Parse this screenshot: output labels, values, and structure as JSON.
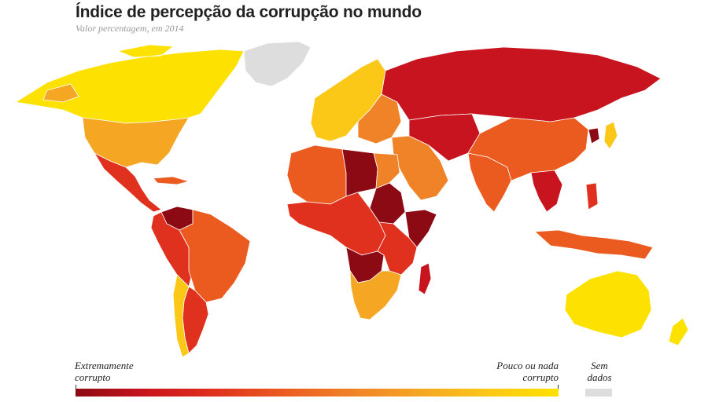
{
  "header": {
    "title": "Índice de percepção da corrupção no mundo",
    "subtitle": "Valor percentagem, em 2014"
  },
  "legend": {
    "low_line1": "Extremamente",
    "low_line2": "corrupto",
    "high_line1": "Pouco ou nada",
    "high_line2": "corrupto",
    "nodata_line1": "Sem",
    "nodata_line2": "dados"
  },
  "colors": {
    "extreme": "#8b0a14",
    "very_high": "#c8141e",
    "high": "#e0301e",
    "medium_high": "#eb5a1e",
    "medium": "#f08228",
    "medium_low": "#f5a623",
    "low": "#fbc817",
    "very_low": "#fde100",
    "no_data": "#dddddd",
    "ocean": "#ffffff"
  },
  "regions": [
    {
      "name": "Canadá",
      "level": "very_low"
    },
    {
      "name": "EUA",
      "level": "medium_low"
    },
    {
      "name": "México",
      "level": "high"
    },
    {
      "name": "Venezuela",
      "level": "extreme"
    },
    {
      "name": "Brasil",
      "level": "medium_high"
    },
    {
      "name": "Argentina",
      "level": "high"
    },
    {
      "name": "Chile",
      "level": "low"
    },
    {
      "name": "Gronelândia",
      "level": "no_data"
    },
    {
      "name": "Europa Ocidental",
      "level": "low"
    },
    {
      "name": "Rússia",
      "level": "very_high"
    },
    {
      "name": "Líbia",
      "level": "extreme"
    },
    {
      "name": "Sudão",
      "level": "extreme"
    },
    {
      "name": "Somália",
      "level": "extreme"
    },
    {
      "name": "Angola",
      "level": "extreme"
    },
    {
      "name": "China",
      "level": "medium_high"
    },
    {
      "name": "Índia",
      "level": "medium_high"
    },
    {
      "name": "Coreia do Norte",
      "level": "extreme"
    },
    {
      "name": "Austrália",
      "level": "very_low"
    },
    {
      "name": "Nova Zelândia",
      "level": "very_low"
    }
  ]
}
